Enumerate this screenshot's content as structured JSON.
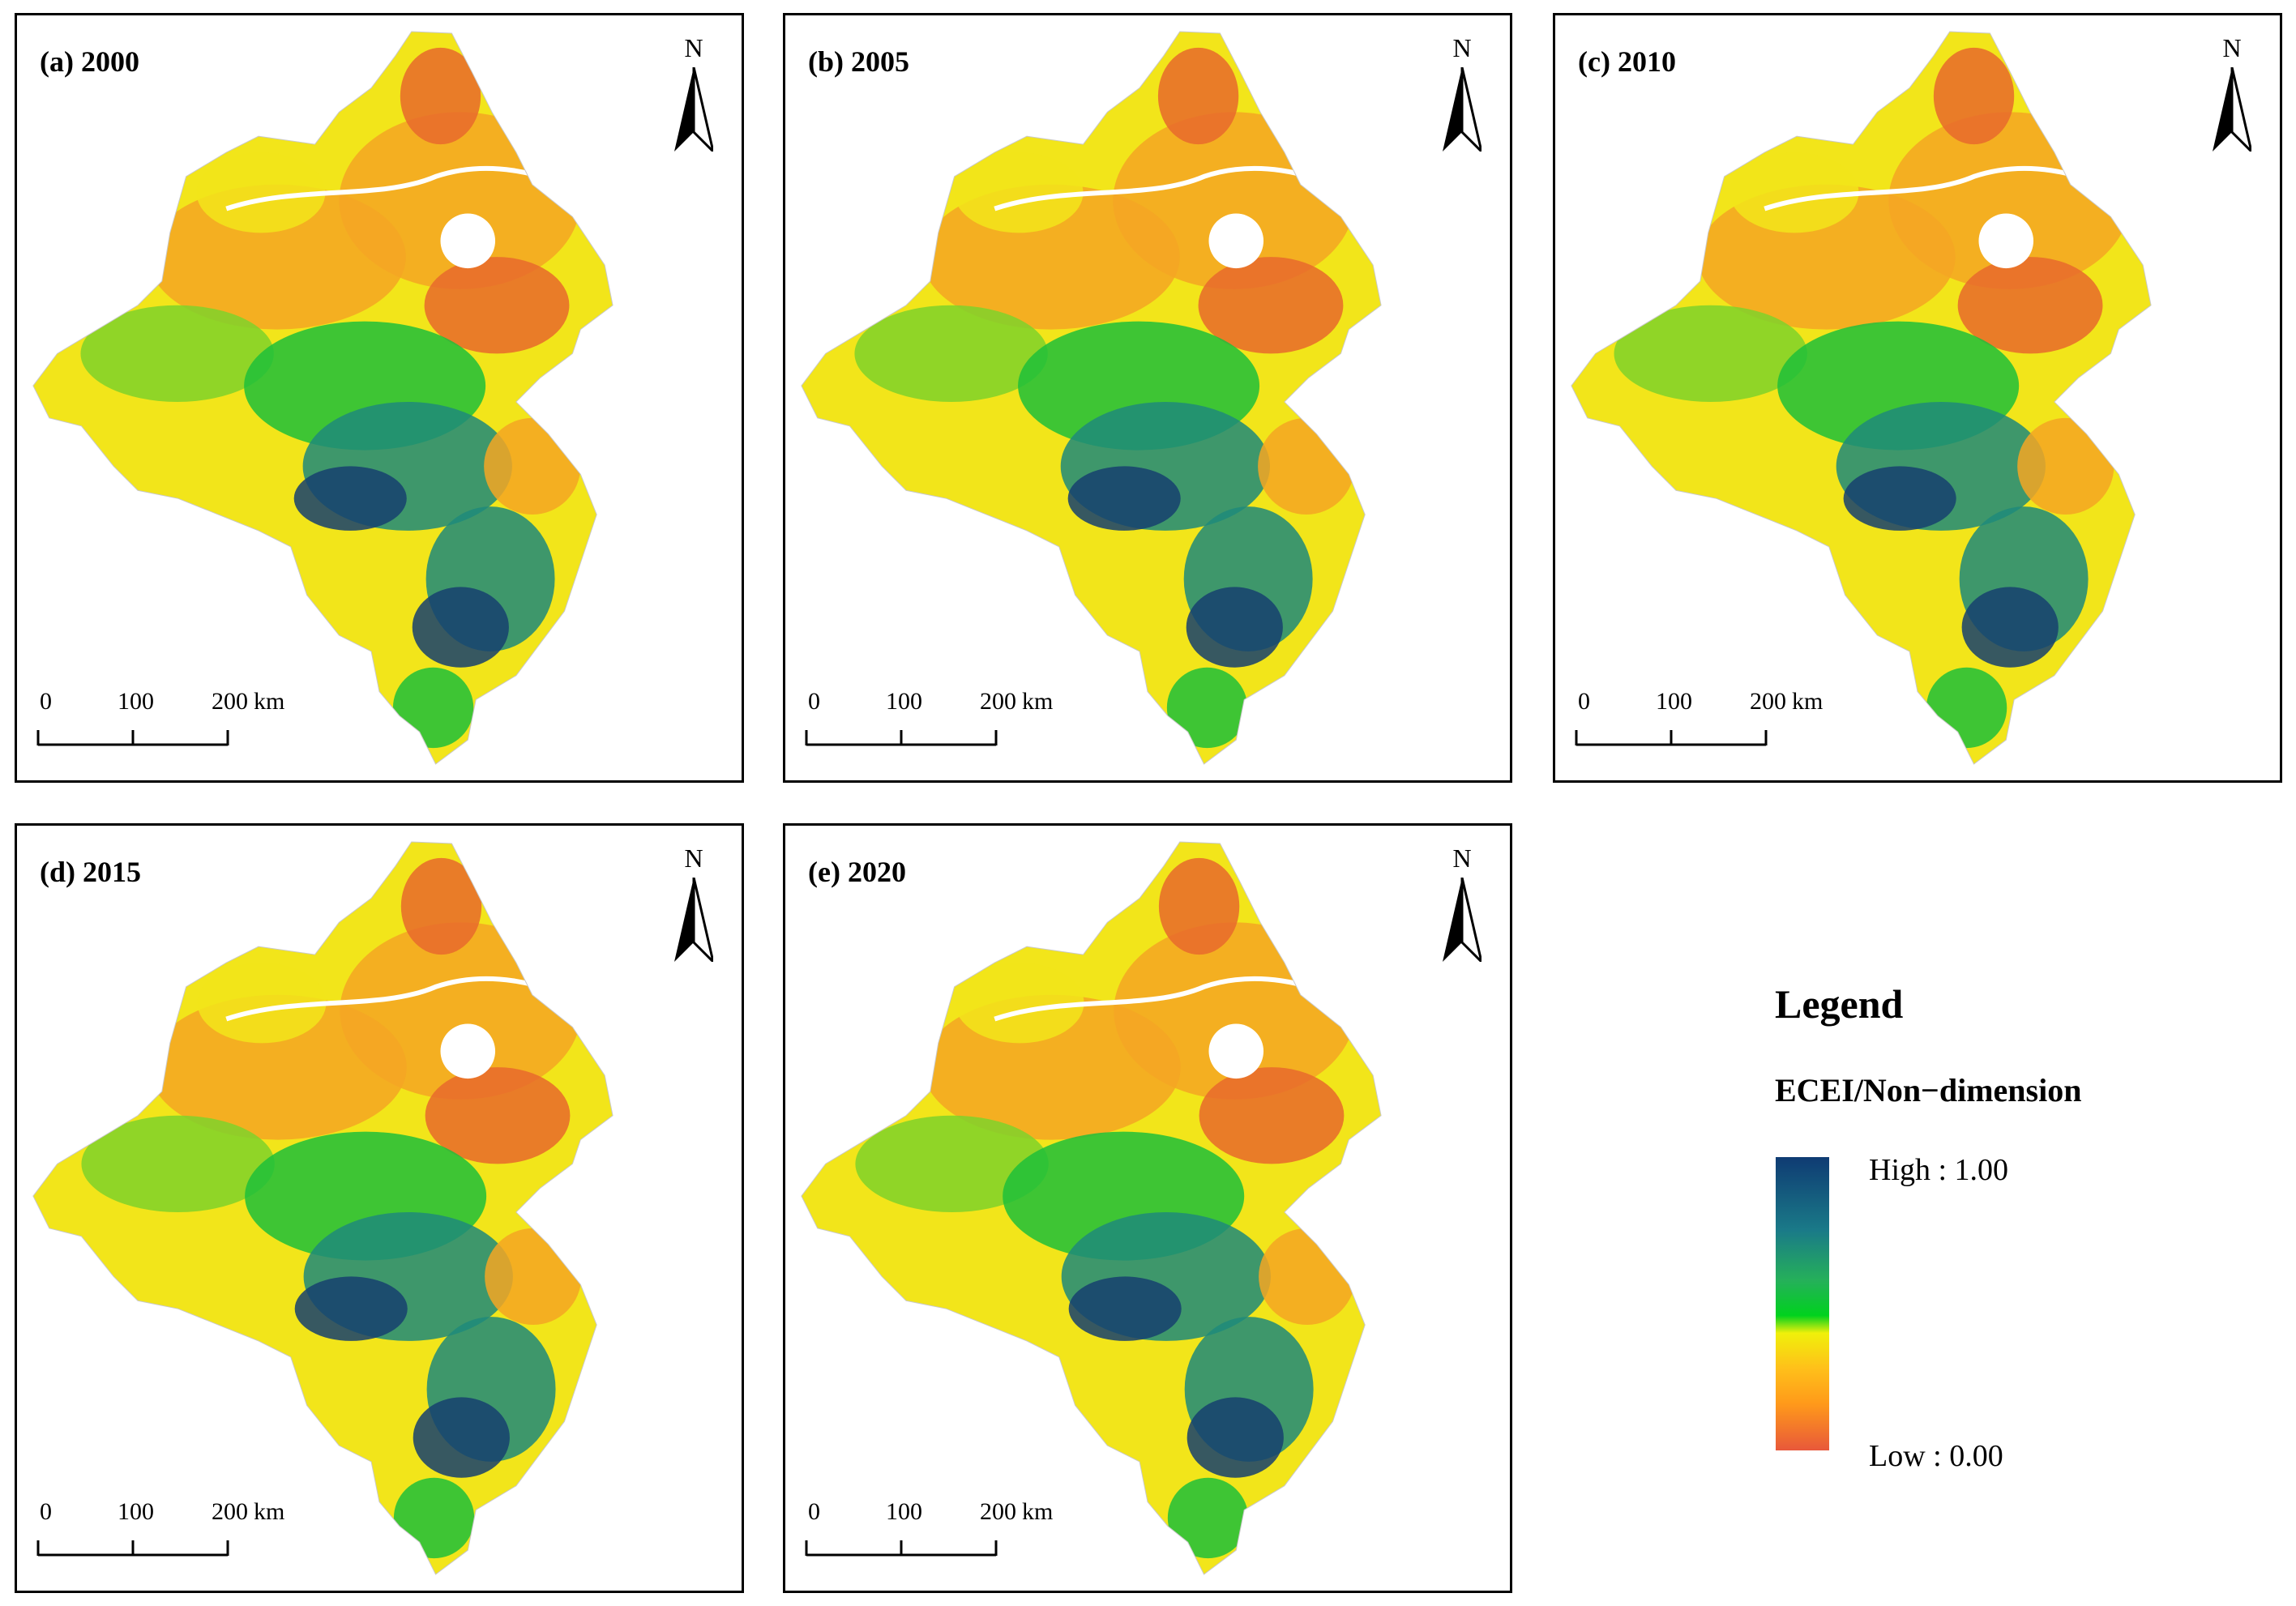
{
  "panels": [
    {
      "label": "(a) 2000"
    },
    {
      "label": "(b) 2005"
    },
    {
      "label": "(c) 2010"
    },
    {
      "label": "(d) 2015"
    },
    {
      "label": "(e) 2020"
    }
  ],
  "north_arrow": {
    "letter": "N"
  },
  "scale_bar": {
    "ticks": [
      "0",
      "100",
      "200"
    ],
    "unit": "km"
  },
  "legend": {
    "title": "Legend",
    "subtitle": "ECEI/Non−dimension",
    "high_label": "High : 1.00",
    "low_label": "Low : 0.00",
    "ramp_colors": [
      "#0f3b73",
      "#1a7a88",
      "#25b05a",
      "#00d21e",
      "#f0f00a",
      "#ffc01a",
      "#ff9a1a",
      "#e8583a"
    ]
  },
  "palette": {
    "orange": "#f5a623",
    "red_orange": "#e86a2c",
    "yellow": "#f2e51a",
    "light_green": "#7fd22a",
    "green": "#1fbf3a",
    "teal": "#1e8a7a",
    "dark_blue": "#163f6e",
    "water": "#ffffff"
  }
}
